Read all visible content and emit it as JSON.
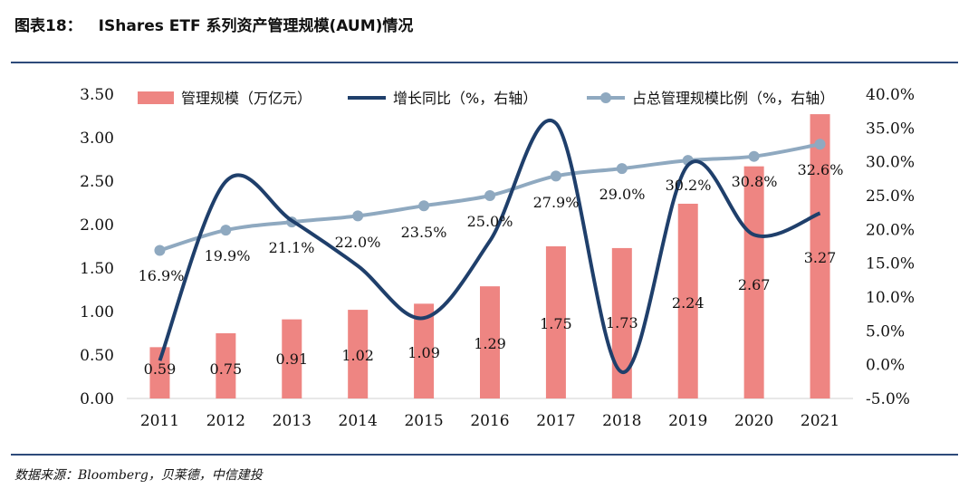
{
  "header": {
    "figure_no": "图表18：",
    "title": "IShares ETF 系列资产管理规模(AUM)情况"
  },
  "footer": {
    "source": "数据来源：Bloomberg，贝莱德，中信建投"
  },
  "colors": {
    "bar": "#ee8582",
    "growth_line": "#1f3f6b",
    "share_line": "#8fa9c0",
    "rule": "#2d4a7a"
  },
  "chart_data": {
    "type": "bar",
    "categories": [
      "2011",
      "2012",
      "2013",
      "2014",
      "2015",
      "2016",
      "2017",
      "2018",
      "2019",
      "2020",
      "2021"
    ],
    "series": [
      {
        "name": "管理规模（万亿元）",
        "type": "bar",
        "axis": "left",
        "values": [
          0.59,
          0.75,
          0.91,
          1.02,
          1.09,
          1.29,
          1.75,
          1.73,
          2.24,
          2.67,
          3.27
        ],
        "labels": [
          "0.59",
          "0.75",
          "0.91",
          "1.02",
          "1.09",
          "1.29",
          "1.75",
          "1.73",
          "2.24",
          "2.67",
          "3.27"
        ]
      },
      {
        "name": "增长同比（%，右轴）",
        "type": "line",
        "axis": "right",
        "values": [
          0.6,
          27.1,
          21.3,
          14.6,
          6.9,
          18.3,
          35.7,
          -1.1,
          29.5,
          19.2,
          22.4
        ]
      },
      {
        "name": "占总管理规模比例（%，右轴）",
        "type": "line",
        "axis": "right",
        "values": [
          16.9,
          19.9,
          21.1,
          22.0,
          23.5,
          25.0,
          27.9,
          29.0,
          30.2,
          30.8,
          32.6
        ],
        "labels": [
          "16.9%",
          "19.9%",
          "21.1%",
          "22.0%",
          "23.5%",
          "25.0%",
          "27.9%",
          "29.0%",
          "30.2%",
          "30.8%",
          "32.6%"
        ]
      }
    ],
    "left_axis": {
      "ylim": [
        0,
        3.5
      ],
      "ticks": [
        "0.00",
        "0.50",
        "1.00",
        "1.50",
        "2.00",
        "2.50",
        "3.00",
        "3.50"
      ]
    },
    "right_axis": {
      "ylim": [
        -5,
        40
      ],
      "ticks": [
        "-5.0%",
        "0.0%",
        "5.0%",
        "10.0%",
        "15.0%",
        "20.0%",
        "25.0%",
        "30.0%",
        "35.0%",
        "40.0%"
      ]
    },
    "legend_position": "top"
  }
}
